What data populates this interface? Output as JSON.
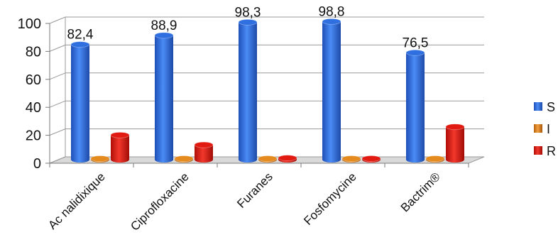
{
  "chart_data": {
    "type": "bar",
    "title": "",
    "xlabel": "",
    "ylabel": "",
    "ylim": [
      0,
      100
    ],
    "y_ticks": [
      "0",
      "20",
      "40",
      "60",
      "80",
      "100"
    ],
    "categories": [
      "Ac nalidixique",
      "Ciprofloxacine",
      "Furanes",
      "Fosfomycine",
      "Bactrim®"
    ],
    "series": [
      {
        "name": "S",
        "color": "#2f6fe0",
        "values": [
          82.4,
          88.9,
          98.3,
          98.8,
          76.5
        ]
      },
      {
        "name": "I",
        "color": "#e58a1f",
        "values": [
          0.5,
          0.5,
          0.5,
          0.5,
          0.5
        ]
      },
      {
        "name": "R",
        "color": "#e21b12",
        "values": [
          17.6,
          10.6,
          1.2,
          0.8,
          23.5
        ]
      }
    ],
    "data_labels": [
      "82,4",
      "88,9",
      "98,3",
      "98,8",
      "76,5"
    ],
    "legend": {
      "placement": "right"
    },
    "grid": true
  }
}
